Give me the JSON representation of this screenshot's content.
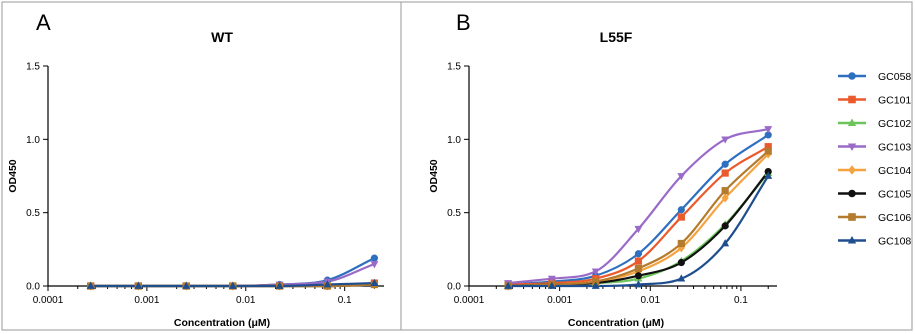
{
  "series_colors": {
    "GC058": "#2f6fc0",
    "GC101": "#ea5a2c",
    "GC102": "#6cc45a",
    "GC103": "#9a6ac8",
    "GC104": "#f5a340",
    "GC105": "#111111",
    "GC106": "#b47a2d",
    "GC108": "#1f4e8f"
  },
  "series_markers": {
    "GC058": "circle",
    "GC101": "square",
    "GC102": "triangle-up",
    "GC103": "triangle-down",
    "GC104": "diamond",
    "GC105": "circle",
    "GC106": "square",
    "GC108": "triangle-up"
  },
  "chart_data": [
    {
      "type": "scatter",
      "panel_letter": "A",
      "title": "WT",
      "xlabel": "Concentration (μM)",
      "ylabel": "OD450",
      "xscale": "log",
      "xlim": [
        0.0001,
        0.25
      ],
      "ylim": [
        0,
        1.5
      ],
      "xticks": [
        0.0001,
        0.001,
        0.01,
        0.1
      ],
      "xtick_labels": [
        "0.0001",
        "0.001",
        "0.01",
        "0.1"
      ],
      "yticks": [
        0.0,
        0.5,
        1.0,
        1.5
      ],
      "ytick_labels": [
        "0.0",
        "0.5",
        "1.0",
        "1.5"
      ],
      "grid": false,
      "fit_curves": true,
      "x": [
        0.00027,
        0.00082,
        0.0025,
        0.0074,
        0.022,
        0.067,
        0.2
      ],
      "series": [
        {
          "name": "GC058",
          "values": [
            0.0,
            0.0,
            0.0,
            0.0,
            0.01,
            0.04,
            0.19
          ]
        },
        {
          "name": "GC101",
          "values": [
            0.0,
            0.0,
            0.0,
            0.0,
            0.0,
            0.0,
            0.02
          ]
        },
        {
          "name": "GC102",
          "values": [
            0.0,
            0.0,
            0.0,
            0.0,
            0.0,
            0.0,
            0.01
          ]
        },
        {
          "name": "GC103",
          "values": [
            0.0,
            0.0,
            0.0,
            0.0,
            0.01,
            0.03,
            0.15
          ]
        },
        {
          "name": "GC104",
          "values": [
            0.0,
            0.0,
            0.0,
            0.0,
            0.0,
            0.0,
            0.01
          ]
        },
        {
          "name": "GC105",
          "values": [
            0.0,
            0.0,
            0.0,
            0.0,
            0.0,
            0.0,
            0.01
          ]
        },
        {
          "name": "GC106",
          "values": [
            0.0,
            0.0,
            0.0,
            0.0,
            0.0,
            0.0,
            0.01
          ]
        },
        {
          "name": "GC108",
          "values": [
            0.0,
            0.0,
            0.0,
            0.0,
            0.0,
            0.01,
            0.02
          ]
        }
      ]
    },
    {
      "type": "scatter",
      "panel_letter": "B",
      "title": "L55F",
      "xlabel": "Concentration (μM)",
      "ylabel": "OD450",
      "xscale": "log",
      "xlim": [
        0.0001,
        0.25
      ],
      "ylim": [
        0,
        1.5
      ],
      "xticks": [
        0.0001,
        0.001,
        0.01,
        0.1
      ],
      "xtick_labels": [
        "0.0001",
        "0.001",
        "0.01",
        "0.1"
      ],
      "yticks": [
        0.0,
        0.5,
        1.0,
        1.5
      ],
      "ytick_labels": [
        "0.0",
        "0.5",
        "1.0",
        "1.5"
      ],
      "grid": false,
      "fit_curves": true,
      "legend": "right",
      "x": [
        0.00027,
        0.00082,
        0.0025,
        0.0074,
        0.022,
        0.067,
        0.2
      ],
      "series": [
        {
          "name": "GC058",
          "values": [
            0.01,
            0.03,
            0.07,
            0.22,
            0.52,
            0.83,
            1.03
          ]
        },
        {
          "name": "GC101",
          "values": [
            0.01,
            0.02,
            0.05,
            0.17,
            0.47,
            0.77,
            0.95
          ]
        },
        {
          "name": "GC102",
          "values": [
            0.0,
            0.01,
            0.02,
            0.05,
            0.17,
            0.42,
            0.77
          ]
        },
        {
          "name": "GC103",
          "values": [
            0.02,
            0.05,
            0.1,
            0.39,
            0.75,
            1.0,
            1.07
          ]
        },
        {
          "name": "GC104",
          "values": [
            0.0,
            0.01,
            0.03,
            0.1,
            0.26,
            0.6,
            0.9
          ]
        },
        {
          "name": "GC105",
          "values": [
            0.0,
            0.01,
            0.02,
            0.07,
            0.16,
            0.41,
            0.78
          ]
        },
        {
          "name": "GC106",
          "values": [
            0.0,
            0.01,
            0.03,
            0.12,
            0.29,
            0.65,
            0.92
          ]
        },
        {
          "name": "GC108",
          "values": [
            0.0,
            0.0,
            0.0,
            0.01,
            0.05,
            0.29,
            0.75
          ]
        }
      ]
    }
  ]
}
